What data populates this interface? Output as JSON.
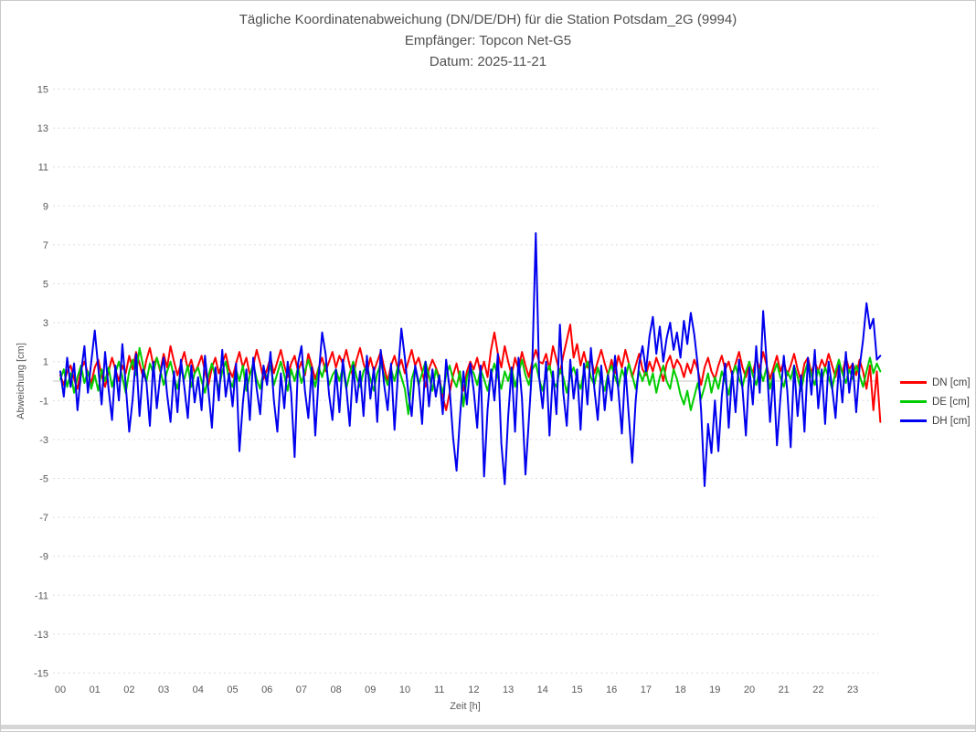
{
  "header": {
    "title": "Tägliche Koordinatenabweichung (DN/DE/DH) für die Station Potsdam_2G (9994)",
    "receiver": "Empfänger: Topcon Net-G5",
    "date": "Datum: 2025-11-21"
  },
  "colors": {
    "title_text": "#4f4f4f",
    "axis_text": "#595959",
    "grid_line": "#dcdcdc",
    "zero_line": "#c3c3c3",
    "window_border": "#c9c9c9",
    "bottom_bar": "#d6d6d6"
  },
  "chart_data": {
    "type": "line",
    "title": "Tägliche Koordinatenabweichung (DN/DE/DH) für die Station Potsdam_2G (9994)",
    "subtitle1": "Empfänger: Topcon Net-G5",
    "subtitle2": "Datum: 2025-11-21",
    "xlabel": "Zeit [h]",
    "ylabel": "Abweichung [cm]",
    "xlim": [
      0,
      24
    ],
    "ylim": [
      -15,
      15
    ],
    "xticks": [
      "00",
      "01",
      "02",
      "03",
      "04",
      "05",
      "06",
      "07",
      "08",
      "09",
      "10",
      "11",
      "12",
      "13",
      "14",
      "15",
      "16",
      "17",
      "18",
      "19",
      "20",
      "21",
      "22",
      "23"
    ],
    "yticks": [
      15,
      13,
      11,
      9,
      7,
      5,
      3,
      1,
      -1,
      -3,
      -5,
      -7,
      -9,
      -11,
      -13,
      -15
    ],
    "grid": "horizontal dashed gridlines at every ytick, solid light zero line, no vertical gridlines",
    "legend_position": "right",
    "x_start_hour": 0,
    "sample_interval_hours": 0.1,
    "series": [
      {
        "name": "DN [cm]",
        "color": "#ff0000",
        "values": [
          0.3,
          -0.2,
          0.5,
          0.8,
          0.1,
          -0.4,
          0.6,
          1.0,
          0.4,
          -0.1,
          0.7,
          1.1,
          0.3,
          -0.3,
          0.5,
          1.2,
          0.6,
          0.0,
          0.8,
          0.4,
          1.3,
          0.6,
          1.5,
          0.9,
          0.2,
          1.1,
          1.7,
          0.8,
          1.2,
          0.5,
          1.4,
          0.7,
          1.8,
          1.0,
          0.3,
          0.9,
          1.5,
          0.6,
          1.1,
          0.4,
          0.8,
          1.3,
          0.5,
          -0.2,
          0.7,
          1.2,
          0.4,
          0.9,
          1.4,
          0.6,
          0.2,
          0.9,
          1.5,
          0.7,
          1.2,
          0.3,
          0.8,
          1.6,
          0.9,
          0.1,
          0.6,
          1.2,
          0.4,
          1.0,
          1.6,
          0.8,
          0.2,
          0.9,
          1.3,
          0.5,
          1.0,
          0.3,
          1.4,
          0.8,
          0.1,
          0.7,
          1.2,
          0.5,
          1.0,
          1.5,
          0.7,
          1.3,
          0.9,
          1.6,
          0.8,
          0.2,
          1.1,
          1.7,
          0.9,
          0.4,
          1.2,
          0.5,
          1.0,
          1.5,
          0.7,
          0.0,
          0.8,
          1.3,
          0.6,
          1.1,
          0.4,
          1.0,
          1.6,
          0.8,
          1.2,
          0.5,
          -0.3,
          0.6,
          1.1,
          0.7,
          0.2,
          -0.8,
          -1.5,
          -0.6,
          0.3,
          0.9,
          0.1,
          -0.5,
          0.5,
          1.0,
          0.6,
          1.2,
          0.4,
          1.0,
          0.2,
          1.6,
          2.5,
          1.4,
          0.7,
          1.8,
          1.0,
          0.3,
          1.2,
          0.6,
          1.5,
          0.8,
          0.2,
          1.0,
          1.6,
          1.0,
          0.9,
          1.4,
          0.6,
          1.8,
          1.1,
          0.4,
          1.3,
          2.1,
          2.9,
          1.2,
          1.9,
          0.8,
          1.5,
          0.7,
          1.2,
          0.4,
          1.0,
          1.6,
          0.9,
          0.3,
          1.1,
          0.4,
          1.3,
          0.7,
          1.6,
          0.9,
          0.2,
          0.8,
          1.4,
          0.6,
          0.3,
          1.0,
          0.5,
          1.2,
          0.7,
          0.0,
          0.9,
          1.3,
          0.6,
          1.1,
          0.8,
          0.2,
          0.9,
          0.4,
          1.1,
          0.6,
          -0.2,
          0.7,
          1.2,
          0.5,
          0.1,
          0.8,
          1.3,
          0.6,
          1.0,
          0.3,
          0.9,
          1.5,
          0.7,
          0.2,
          0.9,
          0.4,
          1.2,
          0.6,
          1.5,
          0.8,
          0.1,
          0.7,
          1.3,
          0.5,
          1.0,
          0.3,
          0.8,
          1.4,
          0.6,
          0.0,
          0.9,
          1.2,
          0.4,
          1.0,
          0.5,
          1.1,
          0.7,
          1.4,
          0.8,
          0.2,
          1.0,
          0.4,
          1.2,
          0.6,
          0.9,
          0.3,
          1.1,
          0.5,
          -0.4,
          0.8,
          -1.5,
          0.5,
          -2.1
        ]
      },
      {
        "name": "DE [cm]",
        "color": "#00cc00",
        "values": [
          0.1,
          0.6,
          -0.3,
          0.4,
          -0.6,
          0.2,
          0.8,
          -0.1,
          0.5,
          -0.4,
          0.3,
          -0.5,
          0.6,
          0.0,
          0.7,
          -0.3,
          0.4,
          1.0,
          0.2,
          -0.6,
          0.5,
          1.1,
          0.3,
          1.7,
          0.8,
          0.0,
          0.9,
          0.4,
          1.2,
          0.6,
          -0.2,
          0.5,
          1.0,
          0.2,
          -0.4,
          0.6,
          0.1,
          0.8,
          -0.3,
          0.4,
          0.7,
          0.0,
          -0.6,
          0.3,
          0.9,
          0.2,
          -0.4,
          0.5,
          1.0,
          0.1,
          -0.3,
          0.6,
          0.0,
          0.8,
          -0.5,
          0.3,
          0.9,
          0.1,
          -0.4,
          0.5,
          0.2,
          0.8,
          -0.2,
          0.4,
          1.0,
          0.3,
          -0.5,
          0.6,
          0.0,
          0.7,
          -0.1,
          0.5,
          1.1,
          0.4,
          -0.3,
          0.7,
          0.2,
          0.9,
          -0.2,
          0.3,
          0.6,
          0.0,
          0.7,
          -0.4,
          0.4,
          1.0,
          0.2,
          -0.3,
          0.5,
          0.8,
          0.1,
          -0.5,
          0.4,
          0.9,
          0.3,
          -0.2,
          0.6,
          0.0,
          0.8,
          0.2,
          -0.4,
          -1.7,
          0.1,
          0.7,
          -0.2,
          0.4,
          1.0,
          0.3,
          -0.5,
          0.6,
          0.0,
          -0.6,
          0.3,
          0.8,
          0.1,
          -0.3,
          0.5,
          -1.3,
          0.2,
          0.7,
          0.4,
          -0.2,
          0.6,
          0.1,
          -0.5,
          0.3,
          0.9,
          0.2,
          -0.4,
          0.5,
          0.0,
          0.7,
          -0.3,
          0.4,
          1.1,
          0.3,
          -0.2,
          0.6,
          0.9,
          0.1,
          -0.5,
          0.4,
          0.8,
          0.0,
          -0.3,
          0.6,
          0.2,
          -0.6,
          0.3,
          0.7,
          0.1,
          -0.4,
          0.5,
          1.0,
          0.2,
          -0.2,
          0.7,
          0.0,
          -0.5,
          0.4,
          0.8,
          0.2,
          -0.3,
          0.6,
          0.1,
          0.9,
          0.3,
          -0.4,
          0.5,
          0.0,
          0.6,
          -0.2,
          0.4,
          -0.6,
          0.2,
          0.8,
          0.0,
          -0.4,
          0.6,
          0.1,
          -0.7,
          -1.2,
          -0.5,
          -1.5,
          -0.8,
          -0.1,
          -0.9,
          -0.3,
          0.4,
          -0.6,
          0.2,
          -0.4,
          0.5,
          0.0,
          -0.7,
          0.3,
          0.8,
          0.1,
          -0.3,
          0.5,
          1.0,
          0.3,
          -0.2,
          0.6,
          0.0,
          0.7,
          -0.4,
          0.4,
          0.9,
          0.2,
          -0.3,
          0.5,
          0.1,
          0.8,
          0.2,
          -0.5,
          0.4,
          1.0,
          0.3,
          -0.2,
          0.6,
          0.0,
          0.7,
          0.2,
          -0.4,
          0.5,
          1.1,
          0.4,
          -0.1,
          0.6,
          0.1,
          0.8,
          0.3,
          -0.3,
          0.5,
          1.2,
          0.4,
          0.9,
          0.5
        ]
      },
      {
        "name": "DH [cm]",
        "color": "#0000ee",
        "values": [
          0.5,
          -0.8,
          1.2,
          -0.3,
          0.9,
          -1.5,
          0.4,
          1.8,
          -0.6,
          1.0,
          2.6,
          0.7,
          -1.2,
          1.5,
          -0.4,
          -2.0,
          0.8,
          -1.0,
          1.9,
          -0.2,
          -2.6,
          -0.9,
          1.4,
          -1.8,
          0.6,
          -0.1,
          -2.3,
          1.0,
          -1.4,
          0.3,
          1.2,
          -0.7,
          -2.1,
          0.5,
          -1.6,
          1.1,
          -0.3,
          -1.9,
          0.8,
          -1.1,
          0.2,
          -1.5,
          1.3,
          -0.5,
          -2.4,
          0.7,
          -1.0,
          1.6,
          -0.8,
          0.4,
          -1.3,
          0.9,
          -3.6,
          -1.1,
          0.6,
          -2.0,
          1.2,
          -0.4,
          -1.7,
          0.8,
          -0.2,
          1.5,
          -1.0,
          -2.6,
          0.4,
          -1.4,
          1.0,
          -0.6,
          -3.9,
          0.9,
          1.8,
          -0.5,
          -1.9,
          0.7,
          -2.8,
          0.3,
          2.5,
          1.4,
          -0.7,
          -2.0,
          0.6,
          -1.6,
          1.1,
          -0.3,
          -2.3,
          0.8,
          -1.1,
          0.5,
          -1.8,
          1.3,
          -0.9,
          0.7,
          -2.1,
          1.6,
          -0.2,
          -1.5,
          0.9,
          -2.5,
          0.4,
          2.7,
          1.2,
          -0.6,
          -1.8,
          0.8,
          -0.1,
          -2.2,
          1.0,
          -1.3,
          0.6,
          -0.8,
          0.3,
          -1.7,
          1.1,
          -0.4,
          -2.9,
          -4.6,
          -1.9,
          0.5,
          -1.2,
          0.9,
          -0.5,
          -2.4,
          0.8,
          -4.9,
          -1.5,
          0.6,
          -1.0,
          1.4,
          -3.2,
          -5.3,
          -1.8,
          0.7,
          -2.6,
          1.2,
          -0.9,
          -4.8,
          -2.0,
          0.9,
          7.6,
          0.2,
          -1.4,
          1.0,
          -2.8,
          0.5,
          -1.7,
          2.9,
          -0.6,
          -2.3,
          1.1,
          -0.9,
          0.6,
          -2.5,
          0.9,
          -1.2,
          1.7,
          -0.4,
          -2.0,
          0.8,
          -1.5,
          0.3,
          -1.0,
          1.3,
          -0.5,
          -2.7,
          0.7,
          -1.8,
          -4.2,
          -1.0,
          0.9,
          1.8,
          0.5,
          2.3,
          3.3,
          1.4,
          2.8,
          1.0,
          2.2,
          3.0,
          1.6,
          2.5,
          1.2,
          3.1,
          1.9,
          3.5,
          2.4,
          0.8,
          -1.5,
          -5.4,
          -2.2,
          -3.7,
          -1.0,
          -3.6,
          -0.8,
          0.9,
          -2.4,
          0.5,
          -1.6,
          1.1,
          -0.4,
          -2.8,
          0.7,
          -1.2,
          1.8,
          -0.6,
          3.6,
          1.0,
          -2.1,
          0.4,
          -3.3,
          -0.9,
          1.3,
          -0.5,
          -3.4,
          0.8,
          -1.8,
          0.3,
          -2.6,
          1.2,
          -0.7,
          1.6,
          -1.4,
          0.6,
          -2.2,
          1.0,
          -0.3,
          -1.9,
          0.8,
          -1.1,
          1.5,
          -0.6,
          0.9,
          -1.6,
          0.7,
          2.1,
          4.0,
          2.7,
          3.2,
          1.1,
          1.3
        ]
      }
    ]
  }
}
